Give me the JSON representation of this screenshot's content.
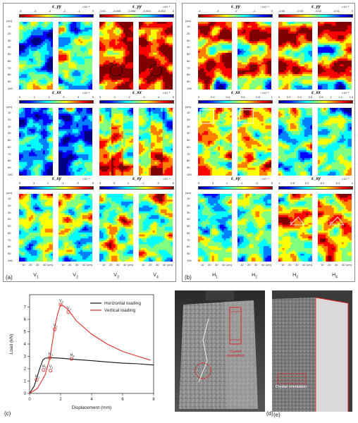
{
  "panels": {
    "a": {
      "letter": "(a)",
      "columns": [
        "V1",
        "V2",
        "V3",
        "V4"
      ],
      "rows": [
        {
          "left_title": "ε_yy",
          "left_ticks": [
            "-5",
            "-4",
            "-3",
            "-2",
            "-1",
            "0"
          ],
          "left_exp": "×10⁻⁴",
          "right_title": "ε_yy",
          "right_ticks": [
            "-0.01",
            "-0.008",
            "-0.006",
            "-0.004",
            "-0.002",
            "0"
          ],
          "right_exp": "×10⁻²"
        },
        {
          "left_title": "ε_xx",
          "left_ticks": [
            "0",
            "1",
            "2",
            "3",
            "4",
            "5"
          ],
          "left_exp": "×10⁻⁴",
          "right_title": "ε_xx",
          "right_ticks": [
            "0",
            "1",
            "2",
            "3",
            "4",
            "5"
          ],
          "right_exp": "×10⁻³"
        },
        {
          "left_title": "ε_xy",
          "left_ticks": [
            "5",
            "3",
            "1",
            "-1",
            "-3",
            "-5"
          ],
          "left_exp": "×10⁻⁴",
          "right_title": "ε_xy",
          "right_ticks": [
            "5",
            "3",
            "1",
            "-1",
            "-3",
            "-5"
          ],
          "right_exp": "×10⁻⁴"
        }
      ]
    },
    "b": {
      "letter": "(b)",
      "columns": [
        "H1",
        "H2",
        "H3",
        "H4"
      ],
      "rows": [
        {
          "left_title": "ε_yy",
          "left_ticks": [
            "-4",
            "-3",
            "-2",
            "-1",
            "0"
          ],
          "left_exp": "×10⁻⁴",
          "right_title": "ε_yy",
          "right_ticks": [
            "-0.04",
            "-0.03",
            "-0.02",
            "-0.01",
            "0"
          ],
          "right_exp": "×10⁻²"
        },
        {
          "left_title": "ε_xx",
          "left_ticks": [
            "0",
            "0.2",
            "0.4",
            "0.6",
            "0.8",
            "1"
          ],
          "left_exp": "×10⁻³",
          "right_title": "ε_xx",
          "right_ticks": [
            "0",
            "0.2",
            "0.4",
            "0.6",
            "0.8",
            "1",
            "1.2",
            "1.4"
          ],
          "right_exp": "×10⁻²"
        },
        {
          "left_title": "ε_xy",
          "left_ticks": [
            "5",
            "3",
            "1",
            "-1",
            "-3",
            "-5"
          ],
          "left_exp": "×10⁻⁴",
          "right_title": "ε_xy",
          "right_ticks": [
            "1",
            "0.6",
            "0.2",
            "-0.2",
            "-0.4",
            "-1"
          ],
          "right_exp": "×10⁻³"
        }
      ],
      "angle_annotation": "45°"
    },
    "y_unit": "(cm)",
    "y_ticks": [
      "10",
      "20",
      "30",
      "40",
      "50",
      "60",
      "70",
      "80",
      "90",
      "100"
    ],
    "x_ticks": [
      "10",
      "20",
      "30",
      "40"
    ],
    "x_unit": "(cm)",
    "c": {
      "letter": "(c)"
    },
    "d": {
      "letter": "(d)",
      "annotation": "Crystal orientation"
    },
    "e": {
      "letter": "(e)",
      "annotation": "Crystal orientation"
    }
  },
  "chart_data": {
    "type": "line",
    "title": "",
    "xlabel": "Displacement (mm)",
    "ylabel": "Load (kN)",
    "xlim": [
      0,
      8
    ],
    "ylim": [
      0,
      8
    ],
    "xticks": [
      0,
      2,
      4,
      6,
      8
    ],
    "yticks": [
      0,
      1,
      2,
      3,
      4,
      5,
      6,
      7
    ],
    "legend_position": "top-right",
    "series": [
      {
        "name": "Horizontal loading",
        "color": "#111111",
        "x": [
          0,
          0.3,
          0.5,
          0.7,
          0.85,
          1.0,
          1.3,
          2.0,
          3.0,
          4.0,
          5.0,
          6.0,
          7.0,
          8.0
        ],
        "y": [
          0,
          0.6,
          1.4,
          2.2,
          2.7,
          2.85,
          2.9,
          2.85,
          2.75,
          2.65,
          2.55,
          2.45,
          2.4,
          2.3
        ]
      },
      {
        "name": "Vertical loading",
        "color": "#e0302a",
        "x": [
          0,
          0.5,
          1.0,
          1.3,
          1.6,
          1.8,
          2.0,
          2.3,
          2.6,
          3.0,
          4.0,
          5.0,
          6.0,
          7.0,
          7.8
        ],
        "y": [
          0,
          0.4,
          1.5,
          2.8,
          5.2,
          6.4,
          7.2,
          7.0,
          6.6,
          5.9,
          4.8,
          4.0,
          3.4,
          3.0,
          2.7
        ]
      }
    ],
    "points": [
      {
        "label": "V1",
        "x": 1.35,
        "y": 1.85,
        "color": "#e0302a"
      },
      {
        "label": "V2",
        "x": 1.62,
        "y": 5.2,
        "color": "#e0302a"
      },
      {
        "label": "V3",
        "x": 2.0,
        "y": 7.2,
        "color": "#e0302a"
      },
      {
        "label": "V4",
        "x": 2.5,
        "y": 6.6,
        "color": "#e0302a"
      },
      {
        "label": "H1",
        "x": 0.45,
        "y": 1.1,
        "color": "#e0302a"
      },
      {
        "label": "H2",
        "x": 0.9,
        "y": 1.9,
        "color": "#e0302a"
      },
      {
        "label": "H3",
        "x": 1.3,
        "y": 2.9,
        "color": "#e0302a"
      },
      {
        "label": "H4",
        "x": 2.7,
        "y": 2.8,
        "color": "#e0302a"
      }
    ]
  }
}
